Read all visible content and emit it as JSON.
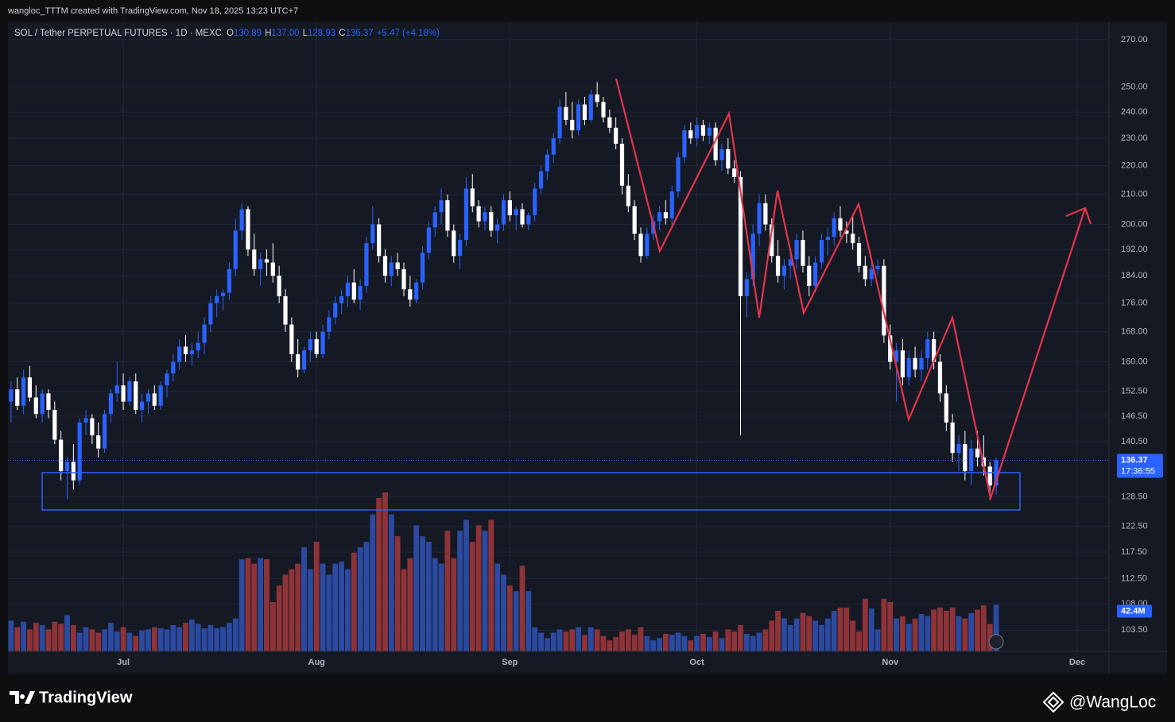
{
  "header": {
    "credit": "wangloc_TTTM created with TradingView.com, Nov 18, 2025 13:23 UTC+7"
  },
  "chart_data": {
    "type": "candlestick",
    "title": "SOL / Tether PERPETUAL FUTURES · 1D · MEXC",
    "legend": [
      {
        "key": "O",
        "value": "130.89"
      },
      {
        "key": "H",
        "value": "137.00"
      },
      {
        "key": "L",
        "value": "128.93"
      },
      {
        "key": "C",
        "value": "136.37"
      }
    ],
    "change": "+5.47 (+4.18%)",
    "ohlc": [
      [
        150,
        155,
        145,
        153
      ],
      [
        153,
        156,
        148,
        149
      ],
      [
        149,
        158,
        147,
        156
      ],
      [
        156,
        159,
        150,
        151
      ],
      [
        151,
        154,
        146,
        147
      ],
      [
        147,
        153,
        145,
        152
      ],
      [
        152,
        153,
        146,
        148
      ],
      [
        148,
        150,
        140,
        141
      ],
      [
        141,
        143,
        132,
        134
      ],
      [
        134,
        137,
        128,
        136
      ],
      [
        136,
        140,
        130,
        132
      ],
      [
        132,
        146,
        131,
        145
      ],
      [
        145,
        148,
        142,
        146
      ],
      [
        146,
        147,
        140,
        142
      ],
      [
        142,
        145,
        137,
        139
      ],
      [
        139,
        148,
        138,
        147
      ],
      [
        147,
        153,
        145,
        152
      ],
      [
        152,
        160,
        150,
        154
      ],
      [
        154,
        157,
        148,
        150
      ],
      [
        150,
        156,
        149,
        155
      ],
      [
        155,
        157,
        147,
        148
      ],
      [
        148,
        152,
        145,
        150
      ],
      [
        150,
        153,
        147,
        152
      ],
      [
        152,
        154,
        148,
        149
      ],
      [
        149,
        155,
        148,
        154
      ],
      [
        154,
        158,
        151,
        157
      ],
      [
        157,
        162,
        155,
        160
      ],
      [
        160,
        166,
        158,
        164
      ],
      [
        164,
        167,
        160,
        162
      ],
      [
        162,
        165,
        159,
        163
      ],
      [
        163,
        168,
        161,
        165
      ],
      [
        165,
        172,
        162,
        170
      ],
      [
        170,
        178,
        168,
        176
      ],
      [
        176,
        180,
        172,
        178
      ],
      [
        178,
        180,
        174,
        179
      ],
      [
        179,
        188,
        177,
        186
      ],
      [
        186,
        202,
        184,
        198
      ],
      [
        198,
        207,
        195,
        205
      ],
      [
        205,
        206,
        190,
        192
      ],
      [
        192,
        197,
        184,
        186
      ],
      [
        186,
        191,
        181,
        189
      ],
      [
        189,
        192,
        184,
        188
      ],
      [
        188,
        194,
        182,
        184
      ],
      [
        184,
        187,
        176,
        178
      ],
      [
        178,
        180,
        168,
        170
      ],
      [
        170,
        172,
        160,
        162
      ],
      [
        162,
        166,
        156,
        158
      ],
      [
        158,
        164,
        157,
        163
      ],
      [
        163,
        168,
        160,
        166
      ],
      [
        166,
        168,
        161,
        162
      ],
      [
        162,
        170,
        161,
        168
      ],
      [
        168,
        174,
        166,
        172
      ],
      [
        172,
        178,
        170,
        176
      ],
      [
        176,
        180,
        173,
        178
      ],
      [
        178,
        184,
        175,
        182
      ],
      [
        182,
        186,
        176,
        177
      ],
      [
        177,
        183,
        174,
        181
      ],
      [
        181,
        196,
        179,
        194
      ],
      [
        194,
        206,
        192,
        200
      ],
      [
        200,
        202,
        188,
        190
      ],
      [
        190,
        192,
        182,
        184
      ],
      [
        184,
        190,
        181,
        188
      ],
      [
        188,
        191,
        184,
        186
      ],
      [
        186,
        188,
        178,
        180
      ],
      [
        180,
        184,
        175,
        177
      ],
      [
        177,
        183,
        176,
        182
      ],
      [
        182,
        193,
        180,
        191
      ],
      [
        191,
        201,
        189,
        199
      ],
      [
        199,
        206,
        196,
        204
      ],
      [
        204,
        212,
        200,
        208
      ],
      [
        208,
        210,
        196,
        198
      ],
      [
        198,
        200,
        188,
        190
      ],
      [
        190,
        197,
        186,
        195
      ],
      [
        195,
        216,
        193,
        212
      ],
      [
        212,
        217,
        204,
        206
      ],
      [
        206,
        208,
        199,
        201
      ],
      [
        201,
        206,
        198,
        204
      ],
      [
        204,
        206,
        196,
        198
      ],
      [
        198,
        202,
        194,
        200
      ],
      [
        200,
        210,
        198,
        208
      ],
      [
        208,
        211,
        201,
        203
      ],
      [
        203,
        206,
        198,
        205
      ],
      [
        205,
        207,
        199,
        200
      ],
      [
        200,
        204,
        198,
        203
      ],
      [
        203,
        214,
        201,
        212
      ],
      [
        212,
        220,
        210,
        218
      ],
      [
        218,
        226,
        215,
        224
      ],
      [
        224,
        232,
        221,
        230
      ],
      [
        230,
        245,
        228,
        242
      ],
      [
        242,
        248,
        235,
        237
      ],
      [
        237,
        244,
        230,
        233
      ],
      [
        233,
        245,
        231,
        243
      ],
      [
        243,
        246,
        235,
        237
      ],
      [
        237,
        249,
        236,
        247
      ],
      [
        247,
        252,
        242,
        244
      ],
      [
        244,
        246,
        236,
        238
      ],
      [
        238,
        241,
        232,
        234
      ],
      [
        234,
        238,
        226,
        228
      ],
      [
        228,
        230,
        210,
        213
      ],
      [
        213,
        217,
        204,
        206
      ],
      [
        206,
        208,
        195,
        197
      ],
      [
        197,
        199,
        188,
        190
      ],
      [
        190,
        199,
        189,
        197
      ],
      [
        197,
        203,
        195,
        201
      ],
      [
        201,
        206,
        198,
        204
      ],
      [
        204,
        208,
        200,
        202
      ],
      [
        202,
        213,
        200,
        211
      ],
      [
        211,
        225,
        209,
        223
      ],
      [
        223,
        235,
        221,
        233
      ],
      [
        233,
        236,
        228,
        230
      ],
      [
        230,
        238,
        227,
        235
      ],
      [
        235,
        237,
        229,
        231
      ],
      [
        231,
        236,
        228,
        234
      ],
      [
        234,
        236,
        220,
        222
      ],
      [
        222,
        228,
        218,
        226
      ],
      [
        226,
        230,
        217,
        219
      ],
      [
        219,
        222,
        214,
        216
      ],
      [
        216,
        218,
        142,
        178
      ],
      [
        178,
        185,
        172,
        183
      ],
      [
        183,
        200,
        181,
        197
      ],
      [
        197,
        210,
        193,
        207
      ],
      [
        207,
        210,
        198,
        200
      ],
      [
        200,
        202,
        188,
        190
      ],
      [
        190,
        195,
        182,
        184
      ],
      [
        184,
        189,
        180,
        187
      ],
      [
        187,
        192,
        183,
        189
      ],
      [
        189,
        197,
        186,
        195
      ],
      [
        195,
        198,
        185,
        187
      ],
      [
        187,
        190,
        178,
        181
      ],
      [
        181,
        190,
        179,
        188
      ],
      [
        188,
        197,
        186,
        195
      ],
      [
        195,
        199,
        190,
        196
      ],
      [
        196,
        204,
        193,
        202
      ],
      [
        202,
        206,
        196,
        198
      ],
      [
        198,
        201,
        194,
        197
      ],
      [
        197,
        203,
        192,
        194
      ],
      [
        194,
        196,
        185,
        187
      ],
      [
        187,
        190,
        181,
        183
      ],
      [
        183,
        188,
        181,
        186
      ],
      [
        186,
        189,
        184,
        187
      ],
      [
        187,
        189,
        165,
        167
      ],
      [
        167,
        170,
        158,
        160
      ],
      [
        160,
        165,
        150,
        163
      ],
      [
        163,
        166,
        154,
        156
      ],
      [
        156,
        163,
        154,
        161
      ],
      [
        161,
        164,
        156,
        158
      ],
      [
        158,
        163,
        155,
        161
      ],
      [
        161,
        168,
        158,
        166
      ],
      [
        166,
        168,
        158,
        160
      ],
      [
        160,
        162,
        150,
        152
      ],
      [
        152,
        154,
        143,
        145
      ],
      [
        145,
        147,
        136,
        138
      ],
      [
        138,
        142,
        134,
        140
      ],
      [
        140,
        143,
        132,
        134
      ],
      [
        134,
        141,
        131,
        139
      ],
      [
        139,
        143,
        135,
        137
      ],
      [
        137,
        142,
        133,
        135
      ],
      [
        135,
        136,
        128,
        130.89
      ],
      [
        130.89,
        137,
        128.93,
        136.37
      ]
    ],
    "volume": [
      28,
      22,
      27,
      20,
      26,
      24,
      20,
      27,
      25,
      33,
      24,
      17,
      22,
      20,
      17,
      20,
      26,
      18,
      22,
      17,
      14,
      19,
      20,
      22,
      21,
      20,
      24,
      22,
      26,
      29,
      25,
      21,
      24,
      21,
      22,
      26,
      30,
      84,
      85,
      80,
      85,
      84,
      45,
      60,
      70,
      75,
      80,
      95,
      75,
      100,
      80,
      70,
      80,
      82,
      75,
      90,
      95,
      100,
      125,
      140,
      145,
      125,
      105,
      75,
      85,
      115,
      105,
      100,
      85,
      80,
      110,
      85,
      110,
      120,
      100,
      115,
      110,
      120,
      80,
      70,
      60,
      55,
      78,
      55,
      22,
      17,
      12,
      17,
      20,
      18,
      20,
      22,
      15,
      22,
      20,
      14,
      10,
      13,
      18,
      20,
      15,
      22,
      14,
      10,
      12,
      16,
      15,
      17,
      14,
      10,
      14,
      16,
      13,
      18,
      12,
      20,
      18,
      24,
      16,
      14,
      17,
      20,
      28,
      37,
      30,
      24,
      30,
      35,
      32,
      28,
      24,
      30,
      37,
      40,
      40,
      28,
      18,
      48,
      39,
      20,
      48,
      45,
      30,
      32,
      25,
      30,
      34,
      32,
      38,
      40,
      37,
      40,
      32,
      30,
      35,
      38,
      42,
      25,
      42.4
    ],
    "volume_label": "42.4M",
    "last_price_label": "136.37",
    "countdown": "17:36:55",
    "log_scale": true,
    "ylim": [
      100,
      277
    ],
    "yticks": [
      {
        "value": 270,
        "label": "270.00"
      },
      {
        "value": 250,
        "label": "250.00"
      },
      {
        "value": 240,
        "label": "240.00"
      },
      {
        "value": 230,
        "label": "230.00"
      },
      {
        "value": 220,
        "label": "220.00"
      },
      {
        "value": 210,
        "label": "210.00"
      },
      {
        "value": 200,
        "label": "200.00"
      },
      {
        "value": 192,
        "label": "192.00"
      },
      {
        "value": 184,
        "label": "184.00"
      },
      {
        "value": 176,
        "label": "176.00"
      },
      {
        "value": 168,
        "label": "168.00"
      },
      {
        "value": 160,
        "label": "160.00"
      },
      {
        "value": 152.5,
        "label": "152.50"
      },
      {
        "value": 146.5,
        "label": "146.50"
      },
      {
        "value": 140.5,
        "label": "140.50"
      },
      {
        "value": 128.5,
        "label": "128.50"
      },
      {
        "value": 122.5,
        "label": "122.50"
      },
      {
        "value": 117.5,
        "label": "117.50"
      },
      {
        "value": 112.5,
        "label": "112.50"
      },
      {
        "value": 108,
        "label": "108.00"
      },
      {
        "value": 103.5,
        "label": "103.50"
      }
    ],
    "xlim": [
      -0.5,
      176.1
    ],
    "xticks": [
      {
        "value": 18,
        "label": "Jul"
      },
      {
        "value": 49,
        "label": "Aug"
      },
      {
        "value": 80,
        "label": "Sep"
      },
      {
        "value": 110,
        "label": "Oct"
      },
      {
        "value": 141,
        "label": "Nov"
      },
      {
        "value": 171,
        "label": "Dec"
      }
    ],
    "grid": true,
    "up_color": "#2962ff",
    "down_color": "#ffffff",
    "volume_up_color": "#2b4aa0",
    "volume_down_color": "#8e3338"
  },
  "footer": {
    "brand": "TradingView",
    "handle": "@WangLoc"
  }
}
